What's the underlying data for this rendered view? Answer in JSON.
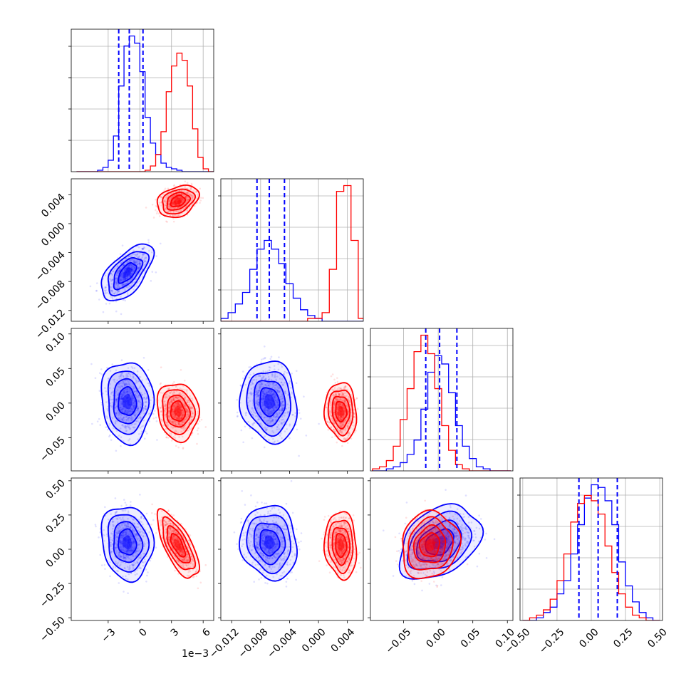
{
  "chart_data": {
    "type": "corner",
    "colors": {
      "blue": "#0000ff",
      "red": "#ff0000"
    },
    "grid": true,
    "series": [
      {
        "color": "blue",
        "means": [
          -1.2,
          -0.0068,
          0.002,
          0.05
        ],
        "sds": [
          1.0,
          0.0016,
          0.024,
          0.11
        ],
        "corr": [
          [
            1,
            0.6,
            -0.05,
            -0.1
          ],
          [
            0.6,
            1,
            -0.1,
            -0.1
          ],
          [
            -0.05,
            -0.1,
            1,
            0.35
          ],
          [
            -0.1,
            -0.1,
            0.35,
            1
          ]
        ]
      },
      {
        "color": "red",
        "means": [
          3.6,
          0.0031,
          -0.012,
          0.03
        ],
        "sds": [
          0.8,
          0.0009,
          0.017,
          0.1
        ],
        "corr": [
          [
            1,
            0.3,
            -0.1,
            -0.7
          ],
          [
            0.3,
            1,
            -0.1,
            -0.1
          ],
          [
            -0.1,
            -0.1,
            1,
            0.1
          ],
          [
            -0.7,
            -0.1,
            0.1,
            1
          ]
        ]
      }
    ],
    "quantile_lines_blue": [
      [
        -2.0,
        -1.0,
        0.3
      ],
      [
        -0.0085,
        -0.0068,
        -0.0047
      ],
      [
        -0.018,
        0.002,
        0.027
      ],
      [
        -0.09,
        0.05,
        0.19
      ]
    ],
    "histograms": [
      {
        "bins": [
          -6.0,
          -5.5,
          -5.0,
          -4.5,
          -4.0,
          -3.5,
          -3.0,
          -2.5,
          -2.0,
          -1.5,
          -1.0,
          -0.5,
          0.0,
          0.5,
          1.0,
          1.5,
          2.0,
          2.5,
          3.0,
          3.5,
          4.0,
          4.5,
          5.0,
          5.5,
          6.0,
          6.5,
          7.0
        ],
        "blue": [
          0,
          0,
          0,
          0,
          1,
          3,
          8,
          25,
          60,
          88,
          95,
          90,
          70,
          38,
          20,
          12,
          6,
          3,
          2,
          1,
          0,
          0,
          0,
          0,
          0,
          0
        ],
        "red": [
          0,
          0,
          0,
          0,
          0,
          0,
          0,
          0,
          0,
          0,
          0,
          0,
          0,
          1,
          4,
          12,
          28,
          56,
          74,
          83,
          78,
          60,
          30,
          10,
          2,
          0
        ]
      },
      {
        "bins": [
          -0.0135,
          -0.0125,
          -0.0115,
          -0.0105,
          -0.0095,
          -0.0085,
          -0.0075,
          -0.0065,
          -0.0055,
          -0.0045,
          -0.0035,
          -0.0025,
          -0.0015,
          -0.0005,
          0.0005,
          0.0015,
          0.0025,
          0.0035,
          0.0045,
          0.0055,
          0.0065
        ],
        "blue": [
          1,
          3,
          6,
          10,
          18,
          25,
          28,
          25,
          20,
          13,
          8,
          4,
          2,
          1,
          0,
          0,
          0,
          0,
          0,
          0
        ],
        "red": [
          0,
          0,
          0,
          0,
          0,
          0,
          0,
          0,
          0,
          0,
          0,
          0,
          1,
          1,
          3,
          18,
          45,
          47,
          28,
          1
        ]
      },
      {
        "bins": [
          -0.095,
          -0.085,
          -0.075,
          -0.065,
          -0.055,
          -0.045,
          -0.035,
          -0.025,
          -0.015,
          -0.005,
          0.005,
          0.015,
          0.025,
          0.035,
          0.045,
          0.055,
          0.065,
          0.075,
          0.085,
          0.095,
          0.105
        ],
        "blue": [
          0,
          0,
          1,
          2,
          4,
          8,
          15,
          30,
          48,
          56,
          52,
          38,
          22,
          12,
          6,
          2,
          1,
          0,
          0,
          0
        ],
        "red": [
          1,
          2,
          5,
          12,
          25,
          40,
          58,
          66,
          57,
          40,
          22,
          10,
          3,
          1,
          0,
          0,
          0,
          0,
          0,
          0
        ]
      },
      {
        "bins": [
          -0.5,
          -0.45,
          -0.4,
          -0.35,
          -0.3,
          -0.25,
          -0.2,
          -0.15,
          -0.1,
          -0.05,
          0.0,
          0.05,
          0.1,
          0.15,
          0.2,
          0.25,
          0.3,
          0.35,
          0.4,
          0.45,
          0.5
        ],
        "blue": [
          0,
          0,
          1,
          3,
          5,
          10,
          15,
          25,
          36,
          46,
          51,
          50,
          45,
          36,
          22,
          13,
          7,
          3,
          1,
          0
        ],
        "red": [
          0,
          1,
          2,
          4,
          8,
          15,
          25,
          37,
          44,
          47,
          45,
          40,
          28,
          18,
          10,
          5,
          2,
          1,
          0,
          0
        ]
      }
    ],
    "axes": [
      {
        "range": [
          -6.5,
          7.0
        ],
        "ticks": [
          -3,
          0,
          3,
          6
        ],
        "labels": [
          "−3",
          "0",
          "3",
          "6"
        ],
        "offset_label": "1e−3"
      },
      {
        "range": [
          -0.0135,
          0.0062
        ],
        "ticks": [
          -0.012,
          -0.008,
          -0.004,
          0.0,
          0.004
        ],
        "labels": [
          "−0.012",
          "−0.008",
          "−0.004",
          "0.000",
          "0.004"
        ]
      },
      {
        "range": [
          -0.098,
          0.108
        ],
        "ticks": [
          -0.05,
          0.0,
          0.05,
          0.1
        ],
        "labels": [
          "−0.05",
          "0.00",
          "0.05",
          "0.10"
        ],
        "left_ticks": [
          -0.05,
          0.0,
          0.05,
          0.1
        ]
      },
      {
        "range": [
          -0.52,
          0.52
        ],
        "ticks": [
          -0.5,
          -0.25,
          0.0,
          0.25,
          0.5
        ],
        "labels": [
          "−0.50",
          "−0.25",
          "0.00",
          "0.25",
          "0.50"
        ]
      }
    ]
  }
}
